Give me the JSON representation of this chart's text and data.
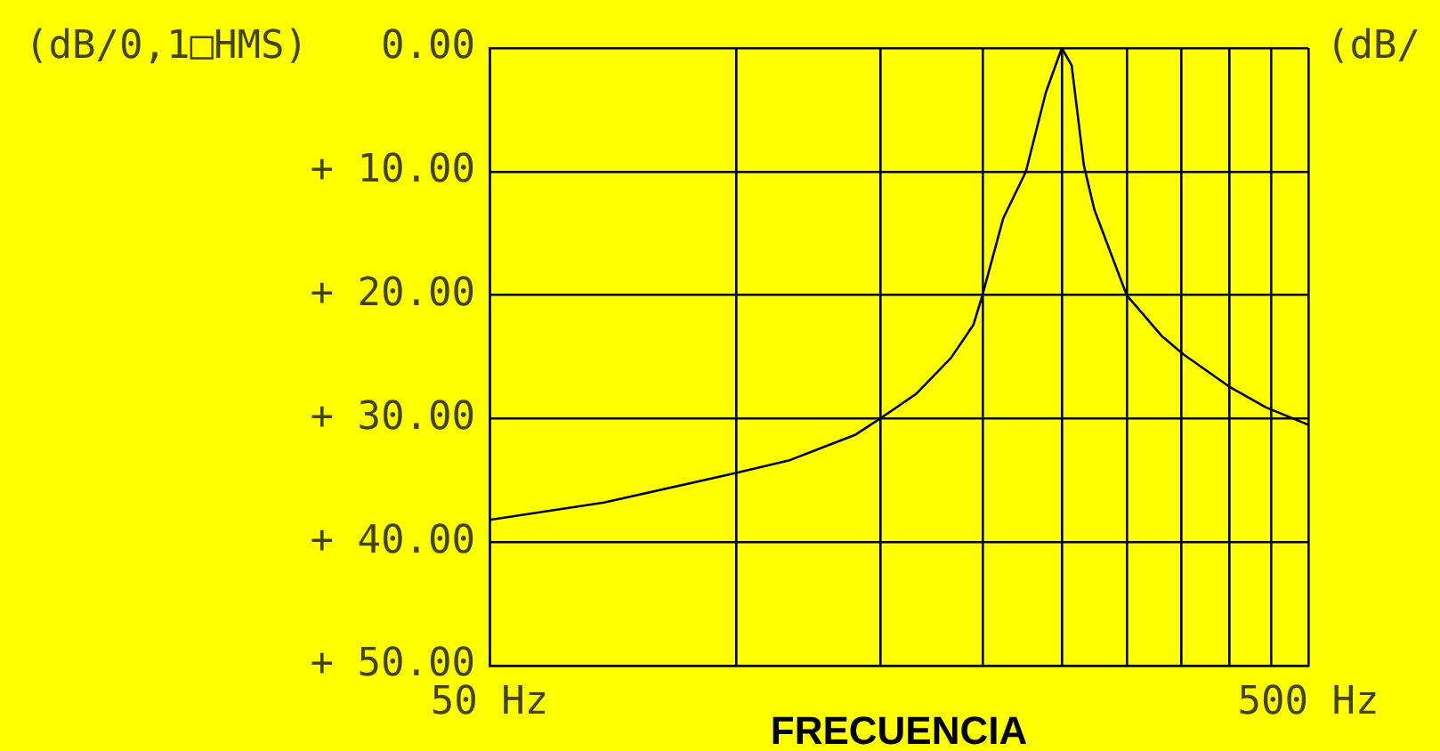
{
  "chart_data": {
    "type": "line",
    "xlabel": "FRECUENCIA",
    "ylabel": "(dB/0,1□HMS)",
    "annotations": [
      "(dB/"
    ],
    "log": "x",
    "x": [
      50,
      69,
      100,
      116,
      140,
      150,
      166,
      183,
      195,
      200,
      212,
      226,
      239,
      250,
      257,
      266,
      274,
      300,
      331,
      352,
      400,
      444,
      500
    ],
    "series": [
      {
        "color": "#000000",
        "values": [
          38.2,
          36.8,
          34.4,
          33.4,
          31.3,
          30,
          28.0,
          25.1,
          22.4,
          20,
          13.8,
          10,
          3.6,
          0,
          1.4,
          9.5,
          13.1,
          20,
          23.3,
          24.8,
          27.4,
          29.1,
          30.5
        ]
      }
    ],
    "xlim": [
      50,
      500
    ],
    "xticks": [
      {
        "value": 50,
        "label": "50 Hz"
      },
      {
        "value": 100,
        "label": null
      },
      {
        "value": 150,
        "label": null
      },
      {
        "value": 200,
        "label": null
      },
      {
        "value": 250,
        "label": null
      },
      {
        "value": 300,
        "label": null
      },
      {
        "value": 350,
        "label": null
      },
      {
        "value": 400,
        "label": null
      },
      {
        "value": 450,
        "label": null
      },
      {
        "value": 500,
        "label": "500 Hz"
      }
    ],
    "ylim": [
      50,
      0
    ],
    "yticks": [
      {
        "value": 0,
        "label": "0.00"
      },
      {
        "value": 10,
        "label": "+ 10.00"
      },
      {
        "value": 20,
        "label": "+ 20.00"
      },
      {
        "value": 30,
        "label": "+ 30.00"
      },
      {
        "value": 40,
        "label": "+ 40.00"
      },
      {
        "value": 50,
        "label": "+ 50.00"
      }
    ],
    "grid": true,
    "marker": "none",
    "line_style": "solid",
    "legend": false
  }
}
